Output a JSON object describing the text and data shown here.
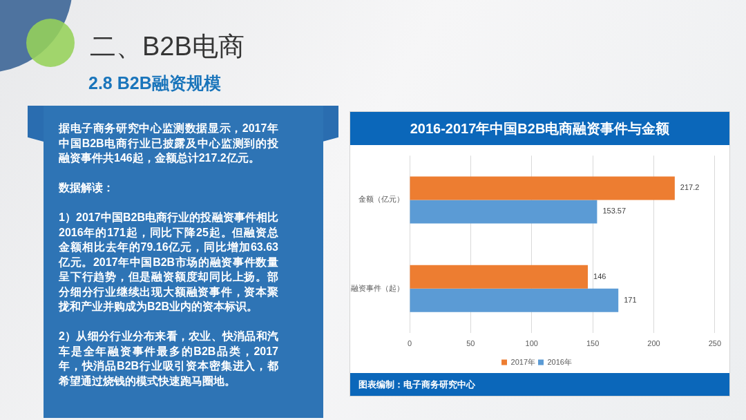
{
  "chart_data": {
    "type": "bar",
    "orientation": "horizontal",
    "title": "2016-2017年中国B2B电商融资事件与金额",
    "categories": [
      "金额（亿元）",
      "融资事件（起）"
    ],
    "series": [
      {
        "name": "2017年",
        "color": "#ed7d31",
        "values": [
          217.2,
          146
        ]
      },
      {
        "name": "2016年",
        "color": "#5b9bd5",
        "values": [
          153.57,
          171
        ]
      }
    ],
    "xlim": [
      0,
      250
    ],
    "xticks": [
      0,
      50,
      100,
      150,
      200,
      250
    ],
    "grid": "x",
    "legend": "bottom",
    "data_labels": true,
    "annotations": [
      "二、B2B电商",
      "2.8 B2B融资规模",
      "据电子商务研究中心监测数据显示，2017年中国B2B电商行业已披露及中心监测到的投融资事件共146起，金额总计217.2亿元。",
      "数据解读：",
      "1）2017中国B2B电商行业的投融资事件相比2016年的171起，同比下降25起。但融资总金额相比去年的79.16亿元，同比增加63.63亿元。2017年中国B2B市场的融资事件数量呈下行趋势，但是融资额度却同比上扬。部分细分行业继续出现大额融资事件，资本聚拢和产业并购成为B2B业内的资本标识。",
      "2）从细分行业分布来看，农业、快消品和汽车是全年融资事件最多的B2B品类，2017年，快消品B2B行业吸引资本密集进入，都希望通过烧钱的模式快速跑马圈地。",
      "图表编制：电子商务研究中心"
    ]
  }
}
